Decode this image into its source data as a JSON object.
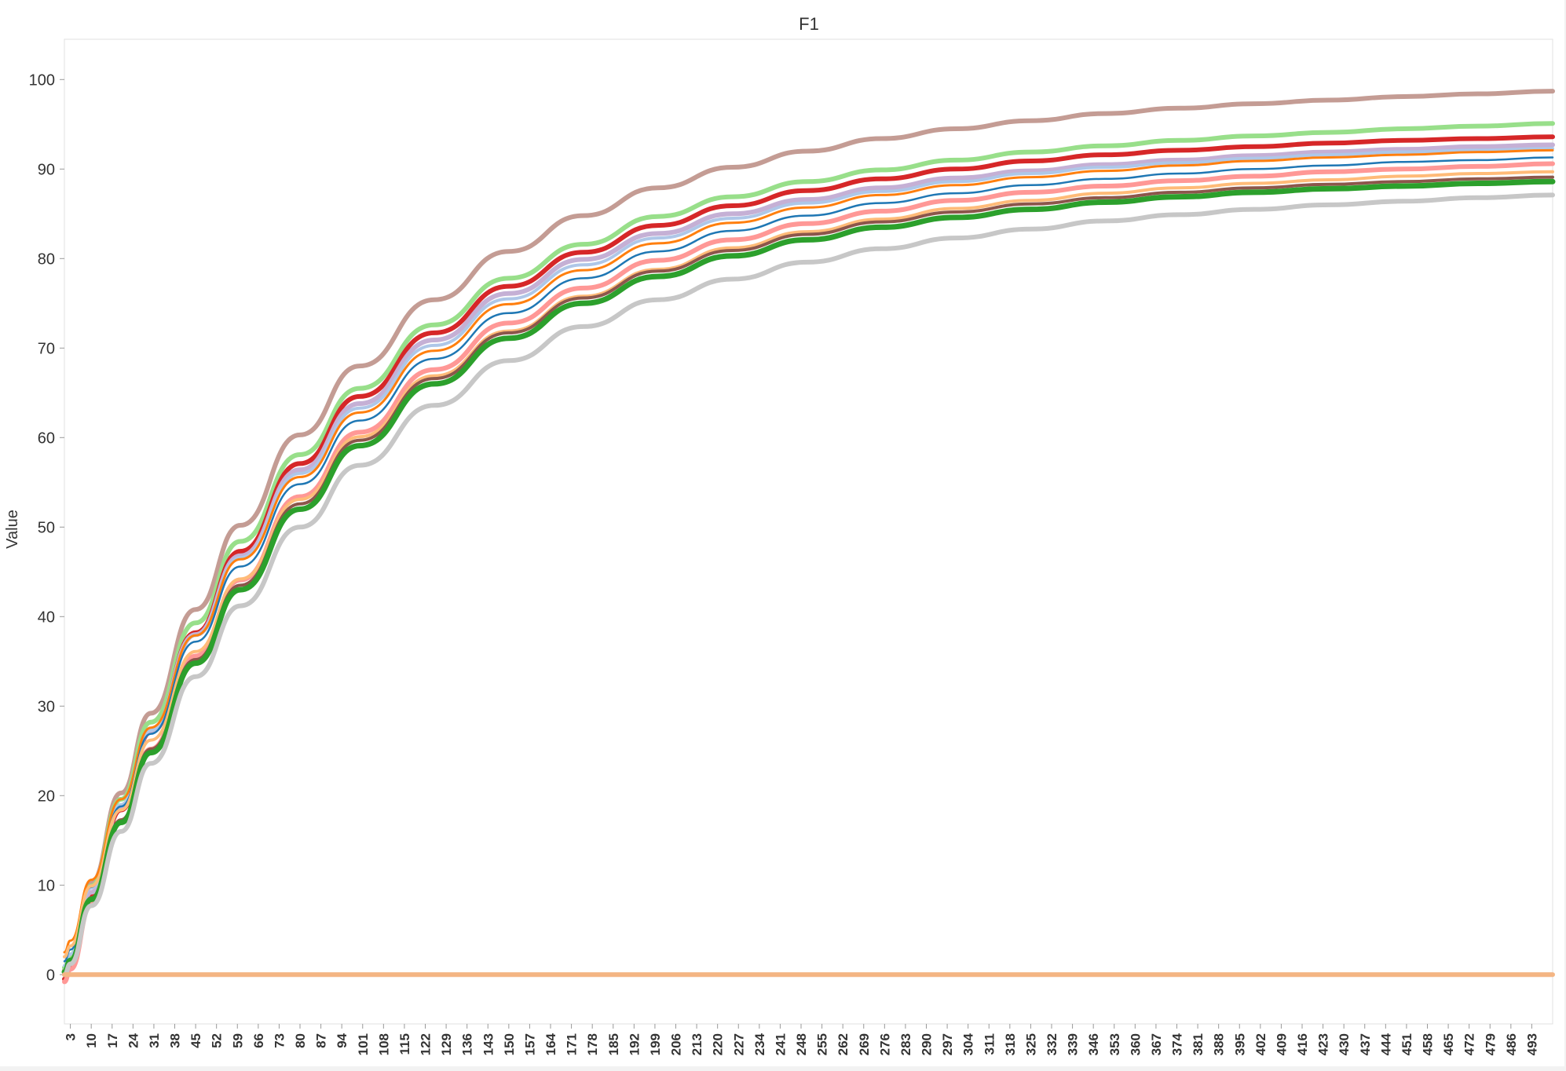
{
  "chart_data": {
    "type": "line",
    "title": "F1",
    "xlabel": "",
    "ylabel": "Value",
    "xlim": [
      1,
      500
    ],
    "ylim": [
      -5.5,
      104.5
    ],
    "yticks": [
      0,
      10,
      20,
      30,
      40,
      50,
      60,
      70,
      80,
      90,
      100
    ],
    "xticks": [
      3,
      10,
      17,
      24,
      31,
      38,
      45,
      52,
      59,
      66,
      73,
      80,
      87,
      94,
      101,
      108,
      115,
      122,
      129,
      136,
      143,
      150,
      157,
      164,
      171,
      178,
      185,
      192,
      199,
      206,
      213,
      220,
      227,
      234,
      241,
      248,
      255,
      262,
      269,
      276,
      283,
      290,
      297,
      304,
      311,
      318,
      325,
      332,
      339,
      346,
      353,
      360,
      367,
      374,
      381,
      388,
      395,
      402,
      409,
      416,
      423,
      430,
      437,
      444,
      451,
      458,
      465,
      472,
      479,
      486,
      493
    ],
    "grid": false,
    "legend": "none",
    "x": [
      1,
      3,
      10,
      20,
      30,
      45,
      60,
      80,
      100,
      125,
      150,
      175,
      200,
      225,
      250,
      275,
      300,
      325,
      350,
      375,
      400,
      425,
      450,
      475,
      500
    ],
    "series": [
      {
        "color": "#c49c94",
        "width": 6,
        "values": [
          0.5,
          2.0,
          10.3,
          20.3,
          29.2,
          40.8,
          50.2,
          60.3,
          68.0,
          75.4,
          80.8,
          84.8,
          87.9,
          90.2,
          92.0,
          93.4,
          94.5,
          95.4,
          96.2,
          96.8,
          97.3,
          97.7,
          98.1,
          98.4,
          98.7
        ]
      },
      {
        "color": "#98df8a",
        "width": 6,
        "values": [
          0.8,
          2.2,
          9.9,
          19.6,
          28.2,
          39.3,
          48.4,
          58.1,
          65.5,
          72.6,
          77.8,
          81.6,
          84.7,
          86.9,
          88.6,
          89.9,
          91.0,
          91.9,
          92.6,
          93.2,
          93.7,
          94.1,
          94.5,
          94.8,
          95.1
        ]
      },
      {
        "color": "#d62728",
        "width": 6,
        "values": [
          -0.5,
          1.0,
          8.8,
          18.4,
          27.1,
          38.2,
          47.3,
          57.1,
          64.6,
          71.7,
          76.9,
          80.7,
          83.7,
          85.9,
          87.6,
          88.9,
          90.0,
          90.9,
          91.6,
          92.1,
          92.5,
          92.9,
          93.2,
          93.4,
          93.6
        ]
      },
      {
        "color": "#c5b0d5",
        "width": 6,
        "values": [
          0.2,
          1.6,
          9.2,
          18.7,
          27.2,
          38.0,
          46.8,
          56.4,
          63.8,
          70.9,
          76.1,
          79.9,
          82.8,
          85.0,
          86.6,
          87.9,
          89.0,
          89.8,
          90.5,
          91.0,
          91.5,
          91.9,
          92.2,
          92.5,
          92.7
        ]
      },
      {
        "color": "#aec7e8",
        "width": 4,
        "values": [
          1.0,
          2.3,
          9.7,
          19.0,
          27.3,
          37.9,
          46.6,
          56.0,
          63.3,
          70.3,
          75.5,
          79.3,
          82.3,
          84.5,
          86.2,
          87.5,
          88.6,
          89.5,
          90.2,
          90.7,
          91.2,
          91.6,
          91.9,
          92.1,
          92.3
        ]
      },
      {
        "color": "#ff7f0e",
        "width": 3,
        "values": [
          2.5,
          3.8,
          10.6,
          19.6,
          27.6,
          37.9,
          46.4,
          55.6,
          62.8,
          69.7,
          74.9,
          78.7,
          81.7,
          84.0,
          85.7,
          87.1,
          88.2,
          89.1,
          89.8,
          90.4,
          90.9,
          91.3,
          91.6,
          91.9,
          92.1
        ]
      },
      {
        "color": "#1f77b4",
        "width": 2.5,
        "values": [
          1.5,
          2.8,
          9.8,
          18.8,
          26.9,
          37.2,
          45.6,
          54.8,
          61.9,
          68.8,
          73.9,
          77.8,
          80.8,
          83.1,
          84.8,
          86.2,
          87.3,
          88.2,
          88.9,
          89.5,
          90.0,
          90.4,
          90.8,
          91.0,
          91.3
        ]
      },
      {
        "color": "#ff9896",
        "width": 6,
        "values": [
          -0.8,
          0.6,
          7.9,
          17.0,
          25.2,
          35.6,
          44.1,
          53.4,
          60.6,
          67.6,
          72.8,
          76.7,
          79.8,
          82.1,
          83.9,
          85.3,
          86.5,
          87.4,
          88.1,
          88.7,
          89.2,
          89.7,
          90.0,
          90.3,
          90.6
        ]
      },
      {
        "color": "#ffbb78",
        "width": 4,
        "values": [
          2.0,
          3.2,
          9.9,
          18.4,
          26.2,
          36.1,
          44.2,
          53.1,
          60.1,
          66.9,
          71.9,
          75.8,
          78.8,
          81.2,
          83.0,
          84.4,
          85.6,
          86.5,
          87.3,
          87.9,
          88.4,
          88.8,
          89.2,
          89.5,
          89.7
        ]
      },
      {
        "color": "#8c564b",
        "width": 4,
        "values": [
          0.3,
          1.6,
          8.6,
          17.3,
          25.2,
          35.2,
          43.5,
          52.6,
          59.7,
          66.6,
          71.7,
          75.6,
          78.6,
          80.9,
          82.7,
          84.1,
          85.2,
          86.1,
          86.8,
          87.4,
          87.9,
          88.3,
          88.6,
          88.9,
          89.1
        ]
      },
      {
        "color": "#2ca02c",
        "width": 7,
        "values": [
          0.3,
          1.6,
          8.4,
          17.0,
          24.8,
          34.8,
          43.0,
          52.0,
          59.1,
          66.0,
          71.1,
          75.0,
          78.0,
          80.3,
          82.1,
          83.5,
          84.6,
          85.5,
          86.3,
          86.9,
          87.4,
          87.8,
          88.1,
          88.4,
          88.6
        ]
      },
      {
        "color": "#c7c7c7",
        "width": 6,
        "values": [
          0.0,
          1.2,
          7.7,
          16.0,
          23.6,
          33.3,
          41.2,
          50.0,
          56.9,
          63.6,
          68.6,
          72.4,
          75.4,
          77.7,
          79.6,
          81.1,
          82.3,
          83.3,
          84.2,
          84.9,
          85.5,
          86.0,
          86.4,
          86.8,
          87.1
        ]
      },
      {
        "color": "#f4b583",
        "width": 6,
        "values": [
          0,
          0,
          0,
          0,
          0,
          0,
          0,
          0,
          0,
          0,
          0,
          0,
          0,
          0,
          0,
          0,
          0,
          0,
          0,
          0,
          0,
          0,
          0,
          0,
          0
        ]
      }
    ]
  }
}
